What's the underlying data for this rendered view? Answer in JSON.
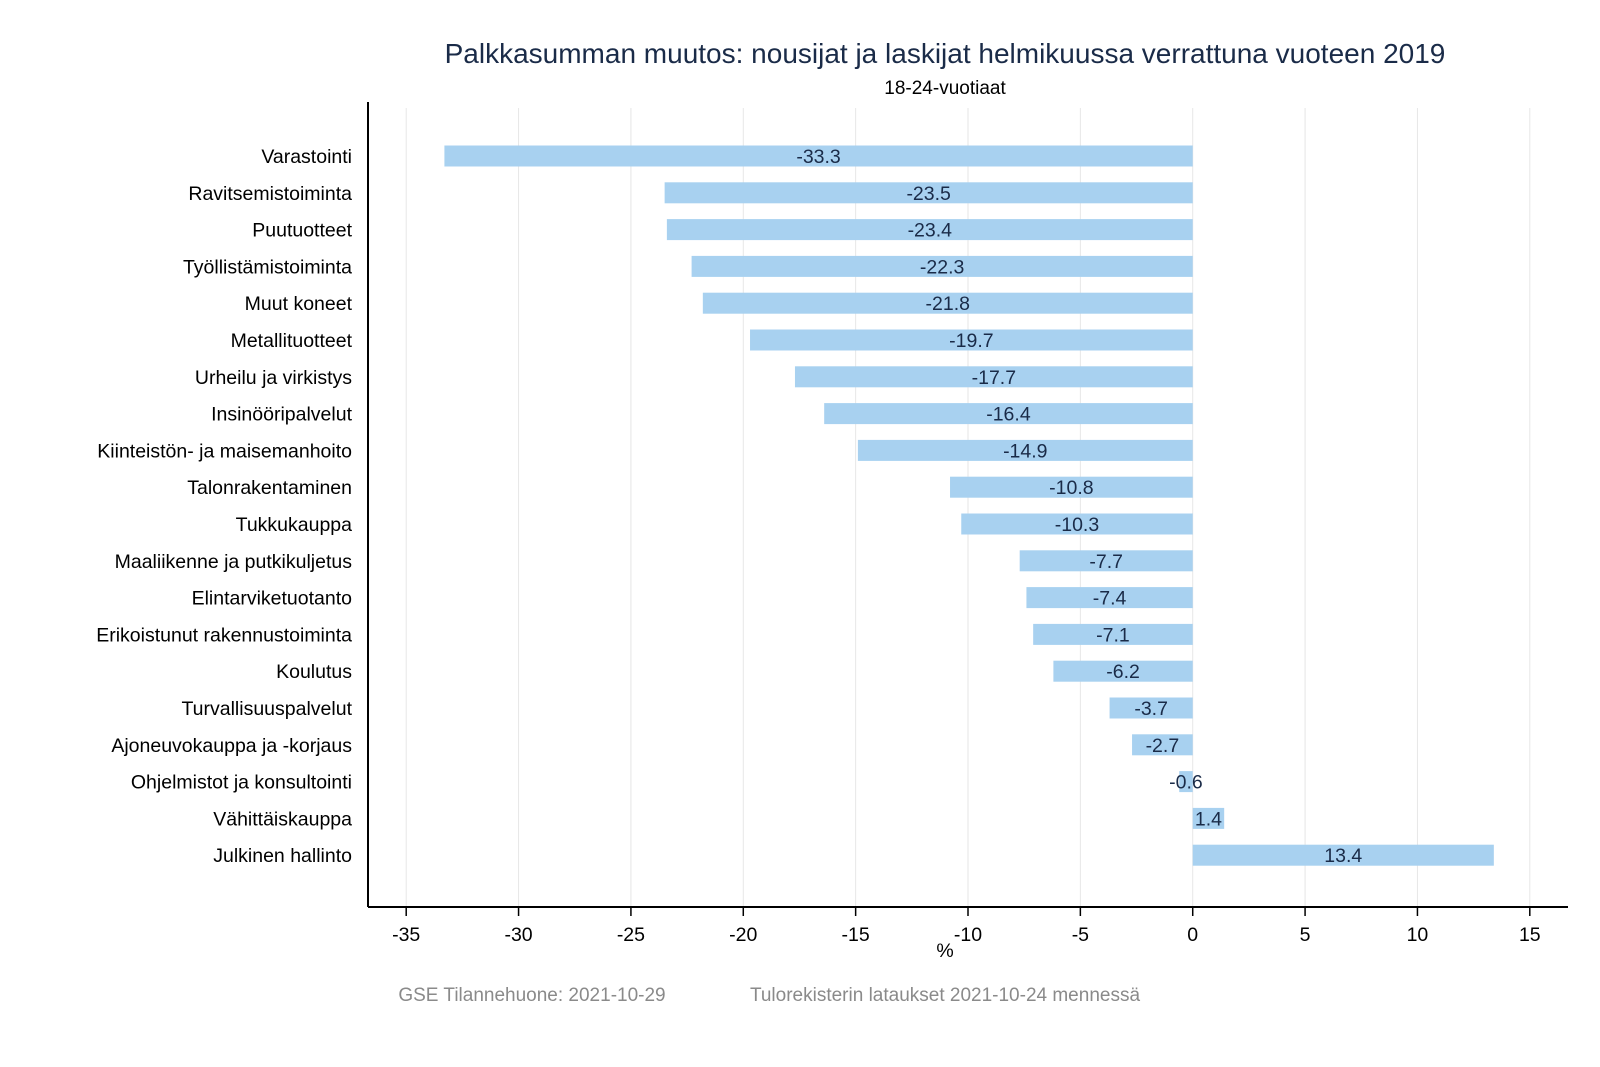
{
  "chart_data": {
    "type": "bar",
    "orientation": "horizontal",
    "title": "Palkkasumman muutos: nousijat ja laskijat helmikuussa verrattuna vuoteen 2019",
    "subtitle": "18-24-vuotiaat",
    "xlabel": "%",
    "ylabel": "",
    "xlim": [
      -36.7,
      16.7
    ],
    "xticks": [
      -35,
      -30,
      -25,
      -20,
      -15,
      -10,
      -5,
      0,
      5,
      10,
      15
    ],
    "grid": true,
    "bar_color": "#a8d1f0",
    "categories": [
      "Varastointi",
      "Ravitsemistoiminta",
      "Puutuotteet",
      "Työllistämistoiminta",
      "Muut koneet",
      "Metallituotteet",
      "Urheilu ja virkistys",
      "Insinööripalvelut",
      "Kiinteistön- ja maisemanhoito",
      "Talonrakentaminen",
      "Tukkukauppa",
      "Maaliikenne ja putkikuljetus",
      "Elintarviketuotanto",
      "Erikoistunut rakennustoiminta",
      "Koulutus",
      "Turvallisuuspalvelut",
      "Ajoneuvokauppa ja -korjaus",
      "Ohjelmistot ja konsultointi",
      "Vähittäiskauppa",
      "Julkinen hallinto"
    ],
    "values": [
      -33.3,
      -23.5,
      -23.4,
      -22.3,
      -21.8,
      -19.7,
      -17.7,
      -16.4,
      -14.9,
      -10.8,
      -10.3,
      -7.7,
      -7.4,
      -7.1,
      -6.2,
      -3.7,
      -2.7,
      -0.6,
      1.4,
      13.4
    ],
    "value_labels": [
      "-33.3",
      "-23.5",
      "-23.4",
      "-22.3",
      "-21.8",
      "-19.7",
      "-17.7",
      "-16.4",
      "-14.9",
      "-10.8",
      "-10.3",
      "-7.7",
      "-7.4",
      "-7.1",
      "-6.2",
      "-3.7",
      "-2.7",
      "-0.6",
      "1.4",
      "13.4"
    ]
  },
  "footer": {
    "source": "GSE Tilannehuone: 2021-10-29",
    "note": "Tulorekisterin lataukset 2021-10-24 mennessä"
  }
}
